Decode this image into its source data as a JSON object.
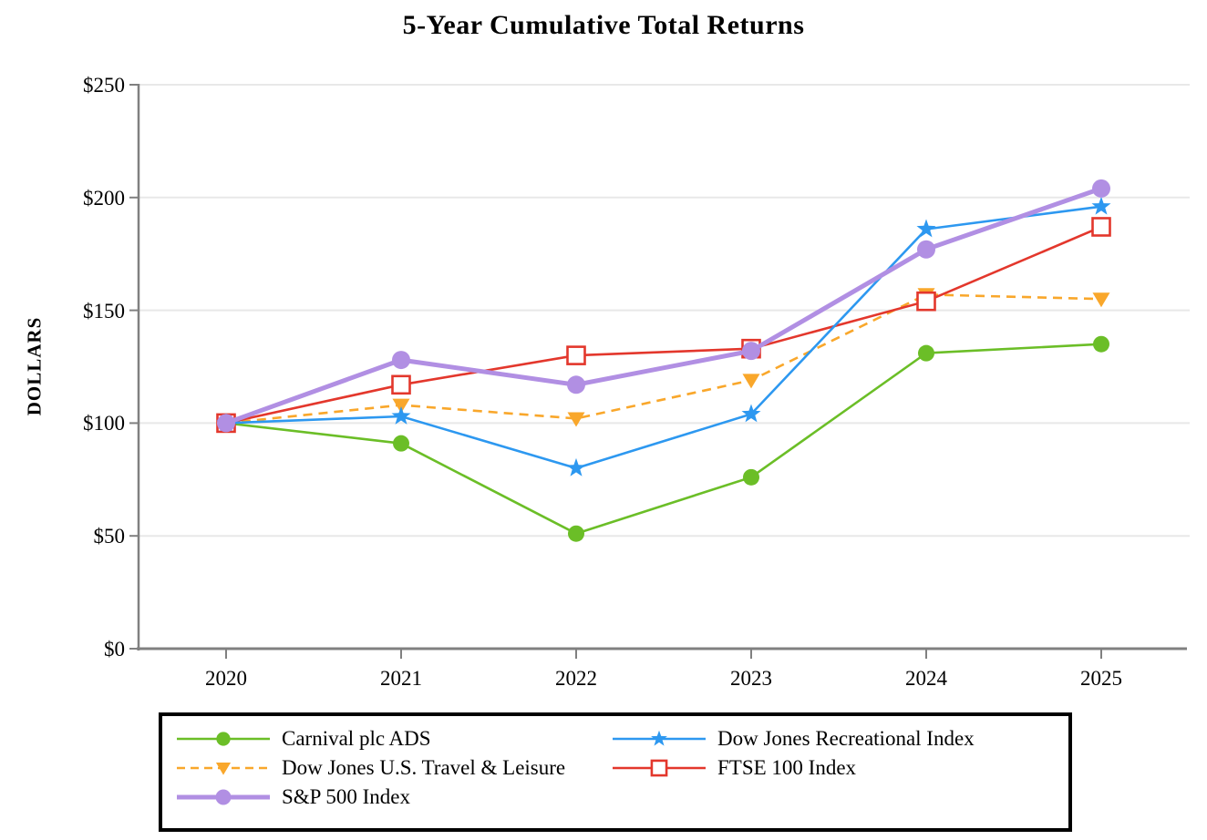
{
  "chart_data": {
    "type": "line",
    "title": "5-Year Cumulative Total Returns",
    "ylabel": "DOLLARS",
    "xlabel": "",
    "x_categories": [
      "2020",
      "2021",
      "2022",
      "2023",
      "2024",
      "2025"
    ],
    "y_tick_labels": [
      "$250",
      "$200",
      "$150",
      "$100",
      "$50",
      "$0"
    ],
    "y_ticks": [
      250,
      200,
      150,
      100,
      50,
      0
    ],
    "ylim": [
      0,
      250
    ],
    "y_tick_step": 50,
    "grid": "horizontal",
    "axis_color": "#808080",
    "gridline_color": "#E8E8E8",
    "legend": {
      "position": "bottom",
      "boxed": true,
      "columns": 2
    },
    "series": [
      {
        "name": "Carnival plc ADS",
        "color": "#6BBE27",
        "marker": "circle",
        "line_style": "solid",
        "values": [
          100,
          91,
          51,
          76,
          131,
          135
        ]
      },
      {
        "name": "Dow Jones Recreational Index",
        "color": "#2D98F0",
        "marker": "star",
        "line_style": "solid",
        "values": [
          100,
          103,
          80,
          104,
          186,
          196
        ]
      },
      {
        "name": "Dow Jones U.S. Travel & Leisure",
        "color": "#F9A72B",
        "marker": "triangle-down",
        "line_style": "dashed",
        "values": [
          100,
          108,
          102,
          119,
          157,
          155
        ]
      },
      {
        "name": "FTSE 100 Index",
        "color": "#E3372C",
        "marker": "square-open",
        "line_style": "solid",
        "values": [
          100,
          117,
          130,
          133,
          154,
          187
        ]
      },
      {
        "name": "S&P 500 Index",
        "color": "#B18FE3",
        "marker": "circle",
        "line_style": "solid",
        "values": [
          100,
          128,
          117,
          132,
          177,
          204
        ]
      }
    ]
  }
}
